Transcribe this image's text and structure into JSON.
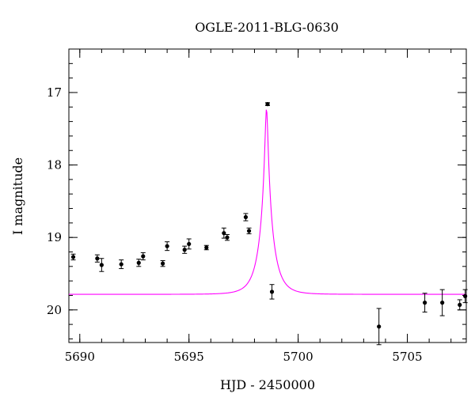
{
  "chart_data": {
    "type": "scatter",
    "title": "OGLE-2011-BLG-0630",
    "xlabel": "HJD - 2450000",
    "ylabel": "I magnitude",
    "xlim": [
      5689.5,
      5707.7
    ],
    "ylim": [
      16.4,
      20.45
    ],
    "y_inverted": true,
    "x_ticks": [
      5690,
      5695,
      5700,
      5705
    ],
    "x_tick_labels": [
      "5690",
      "5695",
      "5700",
      "5705"
    ],
    "y_ticks": [
      17,
      18,
      19,
      20
    ],
    "y_tick_labels": [
      "17",
      "18",
      "19",
      "20"
    ],
    "grid": false,
    "colors": {
      "points": "#000000",
      "model": "#ff00ff"
    },
    "series": [
      {
        "type": "scatter",
        "x": [
          5689.7,
          5690.8,
          5691.0,
          5691.9,
          5692.7,
          5692.9,
          5693.8,
          5694.0,
          5694.8,
          5695.0,
          5695.8,
          5696.6,
          5696.75,
          5697.6,
          5697.75,
          5698.6,
          5698.8,
          5703.7,
          5705.8,
          5706.6,
          5707.4,
          5707.65
        ],
        "y": [
          19.27,
          19.29,
          19.38,
          19.37,
          19.35,
          19.26,
          19.36,
          19.12,
          19.17,
          19.09,
          19.14,
          18.94,
          19.0,
          18.72,
          18.91,
          17.16,
          19.75,
          20.23,
          19.9,
          19.9,
          19.93,
          19.81
        ],
        "yerr": [
          0.04,
          0.05,
          0.09,
          0.06,
          0.05,
          0.05,
          0.04,
          0.06,
          0.05,
          0.07,
          0.03,
          0.07,
          0.04,
          0.05,
          0.04,
          0.02,
          0.1,
          0.25,
          0.13,
          0.18,
          0.07,
          0.09
        ]
      },
      {
        "type": "line",
        "model": "lensing",
        "t0": 5698.55,
        "baseline": 19.785,
        "peak": 17.22,
        "x_range": [
          5689.5,
          5707.7
        ]
      }
    ]
  }
}
